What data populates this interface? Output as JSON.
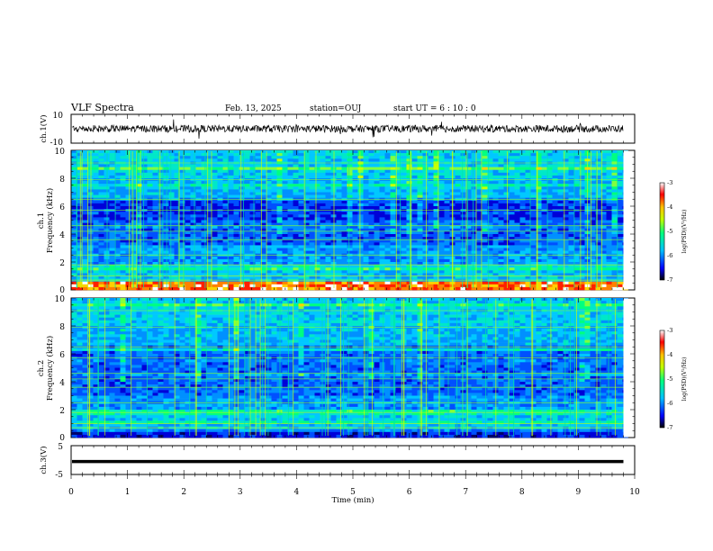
{
  "header": {
    "title": "VLF Spectra",
    "date": "Feb. 13, 2025",
    "station": "station=OUJ",
    "start": "start UT =  6 : 10 : 0"
  },
  "chart_data": [
    {
      "type": "line",
      "id": "ch1-waveform",
      "ylabel": "ch.1(V)",
      "ylim": [
        -10,
        10
      ],
      "yticks": [
        "10",
        "-10"
      ],
      "description": "dense noisy voltage trace centered near 0 V over 0-9.8 min",
      "x_range": [
        0,
        9.8
      ]
    },
    {
      "type": "heatmap",
      "id": "ch1-spectrogram",
      "ylabel": "ch.1",
      "ylabel2": "Frequency (kHz)",
      "ylim": [
        0,
        10
      ],
      "yticks": [
        "0",
        "2",
        "4",
        "6",
        "8",
        "10"
      ],
      "x_range": [
        0,
        9.8
      ],
      "colorbar": {
        "label": "log(PSD)(V²/Hz)",
        "range": [
          -7,
          -3
        ],
        "ticks": [
          "-3",
          "-4",
          "-5",
          "-6",
          "-7"
        ]
      }
    },
    {
      "type": "heatmap",
      "id": "ch2-spectrogram",
      "ylabel": "ch.2",
      "ylabel2": "Frequency (kHz)",
      "ylim": [
        0,
        10
      ],
      "yticks": [
        "0",
        "2",
        "4",
        "6",
        "8",
        "10"
      ],
      "x_range": [
        0,
        9.8
      ],
      "colorbar": {
        "label": "log(PSD)(V²/Hz)",
        "range": [
          -7,
          -3
        ],
        "ticks": [
          "-3",
          "-4",
          "-5",
          "-6",
          "-7"
        ]
      }
    },
    {
      "type": "line",
      "id": "ch3-waveform",
      "ylabel": "ch.3(V)",
      "ylim": [
        -5,
        5
      ],
      "yticks": [
        "5",
        "-5"
      ],
      "values_constant": -0.5,
      "x_range": [
        0,
        9.8
      ]
    }
  ],
  "xaxis": {
    "label": "Time (min)",
    "xlim": [
      0,
      10
    ],
    "ticks": [
      "0",
      "1",
      "2",
      "3",
      "4",
      "5",
      "6",
      "7",
      "8",
      "9",
      "10"
    ]
  },
  "colors": {
    "background": "#ffffff",
    "trace": "#000000"
  }
}
